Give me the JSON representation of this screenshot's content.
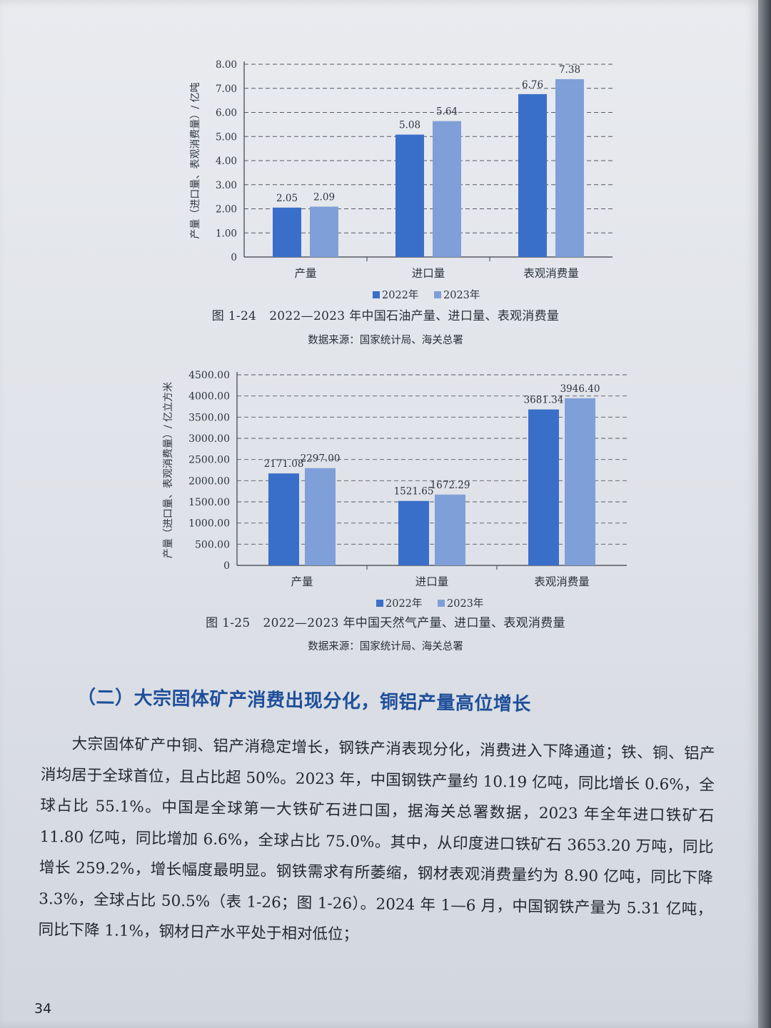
{
  "colors": {
    "series_2022": "#3a6fc9",
    "series_2023": "#7f9fd8",
    "heading": "#1f4f9a"
  },
  "figures": [
    {
      "caption_number": "图 1-24",
      "caption_title": "2022—2023 年中国石油产量、进口量、表观消费量",
      "source": "数据来源：国家统计局、海关总署"
    },
    {
      "caption_number": "图 1-25",
      "caption_title": "2022—2023 年中国天然气产量、进口量、表观消费量",
      "source": "数据来源：国家统计局、海关总署"
    }
  ],
  "chart_data": [
    {
      "type": "bar",
      "categories": [
        "产量",
        "进口量",
        "表观消费量"
      ],
      "series": [
        {
          "name": "2022年",
          "values": [
            2.05,
            5.08,
            6.76
          ]
        },
        {
          "name": "2023年",
          "values": [
            2.09,
            5.64,
            7.38
          ]
        }
      ],
      "value_labels": [
        [
          "2.05",
          "5.08",
          "6.76"
        ],
        [
          "2.09",
          "5.64",
          "7.38"
        ]
      ],
      "ylabel": "产量（进口量、表观消费量）/ 亿吨",
      "ylim": [
        0,
        8
      ],
      "yticks": [
        "0",
        "1.00",
        "2.00",
        "3.00",
        "4.00",
        "5.00",
        "6.00",
        "7.00",
        "8.00"
      ],
      "grid": true,
      "legend": "bottom"
    },
    {
      "type": "bar",
      "categories": [
        "产量",
        "进口量",
        "表观消费量"
      ],
      "series": [
        {
          "name": "2022年",
          "values": [
            2171.08,
            1521.65,
            3681.34
          ]
        },
        {
          "name": "2023年",
          "values": [
            2297.0,
            1672.29,
            3946.4
          ]
        }
      ],
      "value_labels": [
        [
          "2171.08",
          "1521.65",
          "3681.34"
        ],
        [
          "2297.00",
          "1672.29",
          "3946.40"
        ]
      ],
      "ylabel": "产量（进口量、表观消费量）/ 亿立方米",
      "ylim": [
        0,
        4500
      ],
      "yticks": [
        "0",
        "500.00",
        "1000.00",
        "1500.00",
        "2000.00",
        "2500.00",
        "3000.00",
        "3500.00",
        "4000.00",
        "4500.00"
      ],
      "grid": true,
      "legend": "bottom"
    }
  ],
  "section": {
    "heading": "（二）大宗固体矿产消费出现分化，铜铝产量高位增长",
    "paragraph": "大宗固体矿产中铜、铝产消稳定增长，钢铁产消表现分化，消费进入下降通道；铁、铜、铝产消均居于全球首位，且占比超 50%。2023 年，中国钢铁产量约 10.19 亿吨，同比增长 0.6%，全球占比 55.1%。中国是全球第一大铁矿石进口国，据海关总署数据，2023 年全年进口铁矿石 11.80 亿吨，同比增加 6.6%，全球占比 75.0%。其中，从印度进口铁矿石 3653.20 万吨，同比增长 259.2%，增长幅度最明显。钢铁需求有所萎缩，钢材表观消费量约为 8.90 亿吨，同比下降 3.3%，全球占比 50.5%（表 1-26；图 1-26）。2024 年 1—6 月，中国钢铁产量为 5.31 亿吨，同比下降 1.1%，钢材日产水平处于相对低位；"
  },
  "page_number": "34"
}
